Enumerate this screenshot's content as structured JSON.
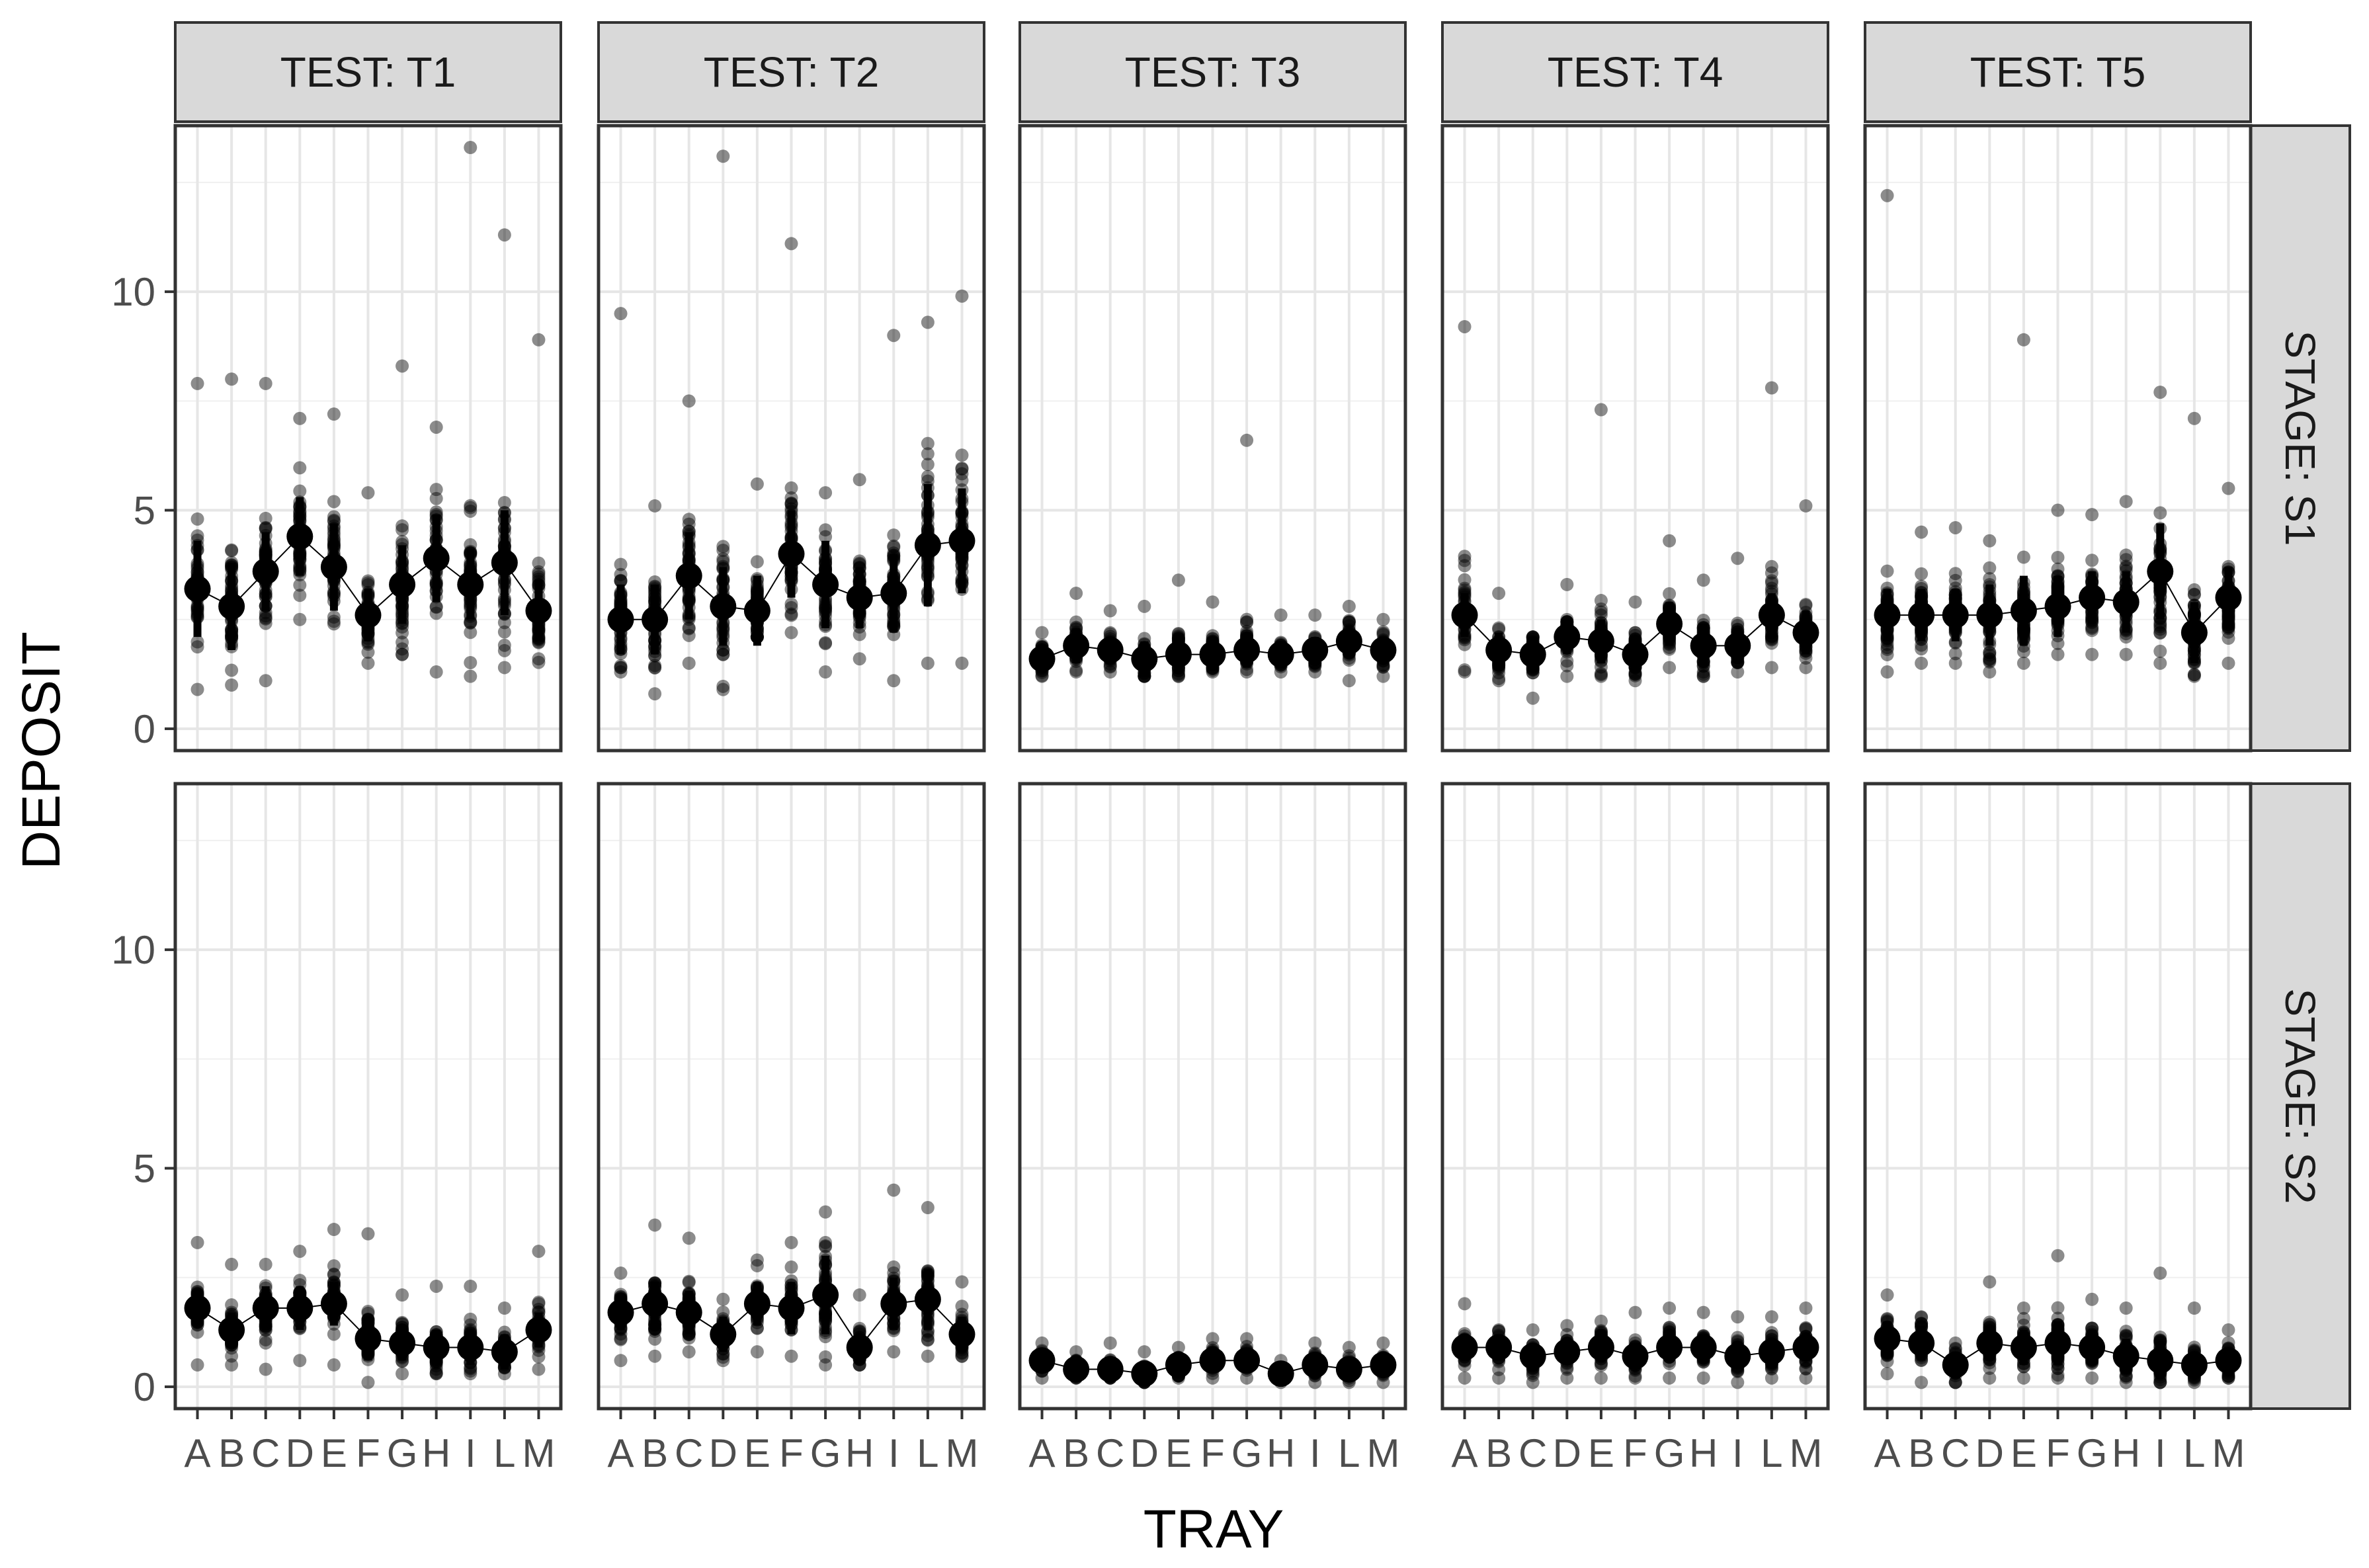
{
  "chart_data": {
    "type": "scatter",
    "facet_columns_label": "TEST",
    "facet_rows_label": "STAGE",
    "xlabel": "TRAY",
    "ylabel": "DEPOSIT",
    "categories": [
      "A",
      "B",
      "C",
      "D",
      "E",
      "F",
      "G",
      "H",
      "I",
      "L",
      "M"
    ],
    "ylim": [
      -0.5,
      13.8
    ],
    "yticks": [
      0,
      5,
      10
    ],
    "grid": true,
    "col_strips": [
      "TEST: T1",
      "TEST: T2",
      "TEST: T3",
      "TEST: T4",
      "TEST: T5"
    ],
    "row_strips": [
      "STAGE: S1",
      "STAGE: S2"
    ],
    "series": [
      {
        "test": "T1",
        "stage": "S1",
        "mean": [
          3.2,
          2.8,
          3.6,
          4.4,
          3.7,
          2.6,
          3.3,
          3.9,
          3.3,
          3.8,
          2.7
        ],
        "sd": [
          1.1,
          1.0,
          0.9,
          0.9,
          1.0,
          0.6,
          0.9,
          1.0,
          0.8,
          1.2,
          0.7
        ],
        "min": [
          0.9,
          1.0,
          1.1,
          2.5,
          2.4,
          1.5,
          1.7,
          1.3,
          1.2,
          1.4,
          1.6
        ],
        "max": [
          7.9,
          8.0,
          7.9,
          7.1,
          7.2,
          5.4,
          8.3,
          6.9,
          13.3,
          11.3,
          8.9
        ]
      },
      {
        "test": "T2",
        "stage": "S1",
        "mean": [
          2.5,
          2.5,
          3.5,
          2.8,
          2.7,
          4.0,
          3.3,
          3.0,
          3.1,
          4.2,
          4.3
        ],
        "sd": [
          0.8,
          0.8,
          1.0,
          0.9,
          0.8,
          1.0,
          1.0,
          0.7,
          0.9,
          1.4,
          1.2
        ],
        "min": [
          1.4,
          0.8,
          1.5,
          1.7,
          2.1,
          2.2,
          1.3,
          1.6,
          1.1,
          1.5,
          1.5
        ],
        "max": [
          9.5,
          5.1,
          7.5,
          13.1,
          5.6,
          11.1,
          5.4,
          5.7,
          9.0,
          9.3,
          9.9
        ]
      },
      {
        "test": "T3",
        "stage": "S1",
        "mean": [
          1.6,
          1.9,
          1.8,
          1.6,
          1.7,
          1.7,
          1.8,
          1.7,
          1.8,
          2.0,
          1.8
        ],
        "sd": [
          0.3,
          0.4,
          0.3,
          0.4,
          0.4,
          0.3,
          0.4,
          0.3,
          0.3,
          0.3,
          0.3
        ],
        "min": [
          1.2,
          1.3,
          1.3,
          1.2,
          1.2,
          1.3,
          1.3,
          1.3,
          1.3,
          1.1,
          1.2
        ],
        "max": [
          2.2,
          3.1,
          2.7,
          2.8,
          3.4,
          2.9,
          6.6,
          2.6,
          2.6,
          2.8,
          2.5
        ]
      },
      {
        "test": "T4",
        "stage": "S1",
        "mean": [
          2.6,
          1.8,
          1.7,
          2.1,
          2.0,
          1.7,
          2.4,
          1.9,
          1.9,
          2.6,
          2.2
        ],
        "sd": [
          0.5,
          0.4,
          0.4,
          0.4,
          0.5,
          0.4,
          0.5,
          0.5,
          0.4,
          0.5,
          0.5
        ],
        "min": [
          1.3,
          1.1,
          0.7,
          1.2,
          1.2,
          1.1,
          1.4,
          1.2,
          1.3,
          1.4,
          1.4
        ],
        "max": [
          9.2,
          3.1,
          2.1,
          3.3,
          7.3,
          2.9,
          4.3,
          3.4,
          3.9,
          7.8,
          5.1
        ]
      },
      {
        "test": "T5",
        "stage": "S1",
        "mean": [
          2.6,
          2.6,
          2.6,
          2.6,
          2.7,
          2.8,
          3.0,
          2.9,
          3.6,
          2.2,
          3.0
        ],
        "sd": [
          0.6,
          0.6,
          0.6,
          0.7,
          0.8,
          0.7,
          0.6,
          0.7,
          1.1,
          0.7,
          0.7
        ],
        "min": [
          1.3,
          1.5,
          1.5,
          1.3,
          1.5,
          1.7,
          1.7,
          1.7,
          1.5,
          1.2,
          1.5
        ],
        "max": [
          12.2,
          4.5,
          4.6,
          4.3,
          8.9,
          5.0,
          4.9,
          5.2,
          7.7,
          7.1,
          5.5
        ]
      },
      {
        "test": "T1",
        "stage": "S2",
        "mean": [
          1.8,
          1.3,
          1.8,
          1.8,
          1.9,
          1.1,
          1.0,
          0.9,
          0.9,
          0.8,
          1.3
        ],
        "sd": [
          0.4,
          0.4,
          0.5,
          0.5,
          0.5,
          0.5,
          0.4,
          0.4,
          0.4,
          0.4,
          0.4
        ],
        "min": [
          0.5,
          0.5,
          0.4,
          0.6,
          0.5,
          0.1,
          0.3,
          0.3,
          0.3,
          0.3,
          0.4
        ],
        "max": [
          3.3,
          2.8,
          2.8,
          3.1,
          3.6,
          3.5,
          2.1,
          2.3,
          2.3,
          1.8,
          3.1
        ]
      },
      {
        "test": "T2",
        "stage": "S2",
        "mean": [
          1.7,
          1.9,
          1.7,
          1.2,
          1.9,
          1.8,
          2.1,
          0.9,
          1.9,
          2.0,
          1.2
        ],
        "sd": [
          0.4,
          0.5,
          0.5,
          0.4,
          0.5,
          0.6,
          0.9,
          0.3,
          0.6,
          0.7,
          0.4
        ],
        "min": [
          0.6,
          0.7,
          0.8,
          0.6,
          0.8,
          0.7,
          0.5,
          0.5,
          0.8,
          0.7,
          0.7
        ],
        "max": [
          2.6,
          3.7,
          3.4,
          2.0,
          2.9,
          3.3,
          4.0,
          2.1,
          4.5,
          4.1,
          2.4
        ]
      },
      {
        "test": "T3",
        "stage": "S2",
        "mean": [
          0.6,
          0.4,
          0.4,
          0.3,
          0.5,
          0.6,
          0.6,
          0.3,
          0.5,
          0.4,
          0.5
        ],
        "sd": [
          0.2,
          0.2,
          0.2,
          0.2,
          0.2,
          0.2,
          0.2,
          0.1,
          0.2,
          0.2,
          0.2
        ],
        "min": [
          0.2,
          0.2,
          0.2,
          0.1,
          0.2,
          0.2,
          0.2,
          0.1,
          0.1,
          0.1,
          0.1
        ],
        "max": [
          1.0,
          0.8,
          1.0,
          0.8,
          0.9,
          1.1,
          1.1,
          0.6,
          1.0,
          0.9,
          1.0
        ]
      },
      {
        "test": "T4",
        "stage": "S2",
        "mean": [
          0.9,
          0.9,
          0.7,
          0.8,
          0.9,
          0.7,
          0.9,
          0.9,
          0.7,
          0.8,
          0.9
        ],
        "sd": [
          0.3,
          0.3,
          0.3,
          0.3,
          0.3,
          0.3,
          0.3,
          0.3,
          0.3,
          0.3,
          0.3
        ],
        "min": [
          0.2,
          0.2,
          0.1,
          0.2,
          0.2,
          0.2,
          0.2,
          0.2,
          0.1,
          0.2,
          0.2
        ],
        "max": [
          1.9,
          1.3,
          1.3,
          1.4,
          1.5,
          1.7,
          1.8,
          1.7,
          1.6,
          1.6,
          1.8
        ]
      },
      {
        "test": "T5",
        "stage": "S2",
        "mean": [
          1.1,
          1.0,
          0.5,
          1.0,
          0.9,
          1.0,
          0.9,
          0.7,
          0.6,
          0.5,
          0.6
        ],
        "sd": [
          0.4,
          0.4,
          0.3,
          0.4,
          0.4,
          0.5,
          0.4,
          0.4,
          0.4,
          0.3,
          0.3
        ],
        "min": [
          0.3,
          0.1,
          0.1,
          0.2,
          0.2,
          0.2,
          0.2,
          0.1,
          0.1,
          0.1,
          0.2
        ],
        "max": [
          2.1,
          1.6,
          1.0,
          2.4,
          1.8,
          3.0,
          2.0,
          1.8,
          2.6,
          1.8,
          1.3
        ]
      }
    ]
  }
}
